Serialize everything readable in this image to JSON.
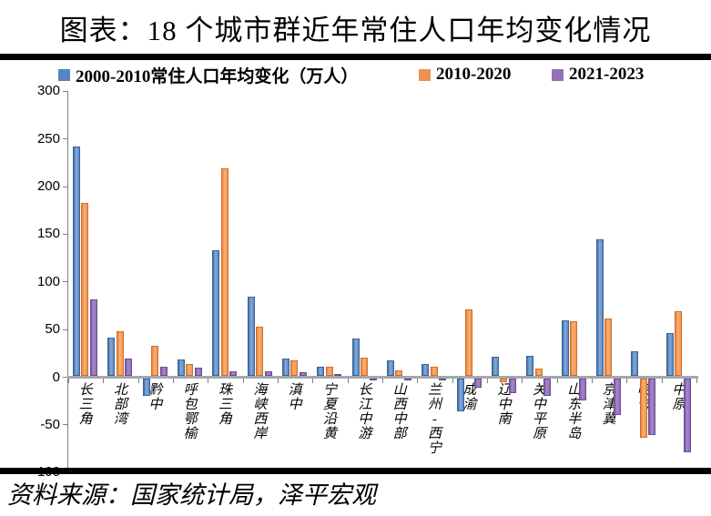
{
  "title": "图表：18 个城市群近年常住人口年均变化情况",
  "source": "资料来源：国家统计局，泽平宏观",
  "colors": {
    "divider": "#000000",
    "axis_line": "#a3a8ad",
    "series_blue": "#5885BD",
    "series_orange": "#F0904E",
    "series_purple": "#9470B8"
  },
  "chart_data": {
    "type": "bar",
    "title": "图表：18 个城市群近年常住人口年均变化情况",
    "xlabel": "",
    "ylabel": "",
    "ylim": [
      -100,
      300
    ],
    "y_ticks": [
      300,
      250,
      200,
      150,
      100,
      50,
      0,
      -50,
      -100
    ],
    "grid": false,
    "legend_position": "top",
    "categories": [
      "长三角",
      "北部湾",
      "黔中",
      "呼包鄂榆",
      "珠三角",
      "海峡西岸",
      "滇中",
      "宁夏沿黄",
      "长江中游",
      "山西中部",
      "兰州-西宁",
      "成渝",
      "辽中南",
      "关中平原",
      "山东半岛",
      "京津冀",
      "哈长",
      "中原"
    ],
    "series": [
      {
        "name": "2000-2010常住人口年均变化（万人）",
        "color": "#5885BD",
        "values": [
          241,
          40,
          -18,
          17,
          132,
          83,
          18,
          10,
          39,
          16,
          12,
          -34,
          20,
          21,
          58,
          143,
          26,
          45
        ]
      },
      {
        "name": "2010-2020",
        "color": "#F0904E",
        "values": [
          182,
          47,
          32,
          12,
          218,
          52,
          16,
          10,
          19,
          6,
          10,
          70,
          -4,
          8,
          57,
          60,
          -62,
          68
        ]
      },
      {
        "name": "2021-2023",
        "color": "#9470B8",
        "values": [
          80,
          18,
          10,
          9,
          5,
          5,
          4,
          2,
          -2,
          -2,
          -2,
          -10,
          -15,
          -18,
          -23,
          -38,
          -59,
          -77
        ]
      }
    ]
  }
}
